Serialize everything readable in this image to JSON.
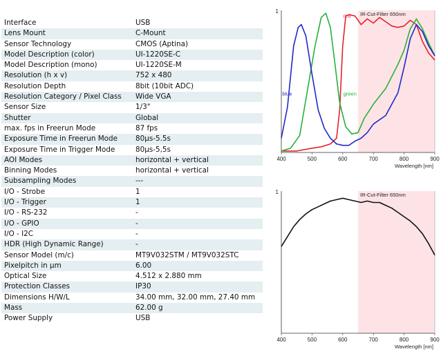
{
  "spec_table": {
    "rows": [
      {
        "key": "Interface",
        "value": "USB"
      },
      {
        "key": "Lens Mount",
        "value": "C-Mount"
      },
      {
        "key": "Sensor Technology",
        "value": "CMOS (Aptina)"
      },
      {
        "key": "Model Description (color)",
        "value": "UI-1220SE-C"
      },
      {
        "key": "Model Description (mono)",
        "value": "UI-1220SE-M"
      },
      {
        "key": "Resolution (h x v)",
        "value": "752 x 480"
      },
      {
        "key": "Resolution Depth",
        "value": "8bit (10bit ADC)"
      },
      {
        "key": "Resolution Category / Pixel Class",
        "value": "Wide VGA"
      },
      {
        "key": "Sensor Size",
        "value": "1/3\""
      },
      {
        "key": "Shutter",
        "value": "Global"
      },
      {
        "key": "max. fps in Freerun Mode",
        "value": "87 fps"
      },
      {
        "key": "Exposure Time in Freerun Mode",
        "value": "80µs-5.5s"
      },
      {
        "key": "Exposure Time in Trigger Mode",
        "value": "80µs-5,5s"
      },
      {
        "key": "AOI Modes",
        "value": "horizontal + vertical"
      },
      {
        "key": "Binning Modes",
        "value": "horizontal + vertical"
      },
      {
        "key": "Subsampling Modes",
        "value": "---"
      },
      {
        "key": "I/O - Strobe",
        "value": "1"
      },
      {
        "key": "I/O - Trigger",
        "value": "1"
      },
      {
        "key": "I/O - RS-232",
        "value": "-"
      },
      {
        "key": "I/O - GPIO",
        "value": "-"
      },
      {
        "key": "I/O - I2C",
        "value": "-"
      },
      {
        "key": "HDR (High Dynamic Range)",
        "value": "-"
      },
      {
        "key": "Sensor Model (m/c)",
        "value": "MT9V032STM / MT9V032STC"
      },
      {
        "key": "Pixelpitch in µm",
        "value": "6.00"
      },
      {
        "key": "Optical Size",
        "value": "4.512 x 2.880 mm"
      },
      {
        "key": "Protection Classes",
        "value": "IP30"
      },
      {
        "key": "Dimensions H/W/L",
        "value": "34.00 mm, 32.00 mm, 27.40 mm"
      },
      {
        "key": "Mass",
        "value": "62.00 g"
      },
      {
        "key": "Power Supply",
        "value": "USB"
      }
    ]
  },
  "colors": {
    "red": "#e8202a",
    "green": "#22b23a",
    "blue": "#2028c8",
    "mono": "#111111",
    "filter_band": "#fde3e6",
    "row_alt": "#e5eef1"
  },
  "chart_data": [
    {
      "type": "line",
      "title": "",
      "xlabel": "Wavelength [nm]",
      "ylabel": "",
      "xlim": [
        400,
        900
      ],
      "ylim": [
        0,
        1
      ],
      "x_ticks": [
        "400",
        "500",
        "600",
        "700",
        "800",
        "900"
      ],
      "y_tick_label": "1",
      "grid": false,
      "filter_band": {
        "from": 650,
        "to": 900,
        "label": "IR-Cut-Filter 650nm"
      },
      "series": [
        {
          "name": "red",
          "color": "red",
          "x": [
            400,
            450,
            500,
            530,
            560,
            580,
            590,
            600,
            610,
            620,
            640,
            660,
            680,
            700,
            720,
            740,
            760,
            780,
            800,
            820,
            840,
            860,
            880,
            900
          ],
          "y": [
            0.01,
            0.01,
            0.03,
            0.04,
            0.06,
            0.1,
            0.3,
            0.75,
            0.96,
            0.97,
            0.96,
            0.9,
            0.94,
            0.91,
            0.95,
            0.92,
            0.89,
            0.88,
            0.89,
            0.93,
            0.9,
            0.78,
            0.7,
            0.65
          ]
        },
        {
          "name": "green",
          "color": "green",
          "x": [
            400,
            430,
            460,
            490,
            510,
            530,
            545,
            560,
            575,
            590,
            610,
            630,
            650,
            670,
            700,
            740,
            780,
            800,
            820,
            840,
            860,
            880,
            900
          ],
          "y": [
            0.01,
            0.03,
            0.12,
            0.5,
            0.75,
            0.95,
            0.98,
            0.88,
            0.62,
            0.35,
            0.18,
            0.13,
            0.14,
            0.24,
            0.34,
            0.45,
            0.62,
            0.72,
            0.87,
            0.94,
            0.87,
            0.77,
            0.68
          ]
        },
        {
          "name": "blue",
          "color": "blue",
          "x": [
            400,
            420,
            440,
            455,
            465,
            480,
            500,
            520,
            540,
            560,
            580,
            600,
            620,
            640,
            660,
            680,
            700,
            740,
            780,
            800,
            820,
            840,
            860,
            880,
            900
          ],
          "y": [
            0.1,
            0.32,
            0.75,
            0.88,
            0.9,
            0.82,
            0.55,
            0.3,
            0.17,
            0.1,
            0.06,
            0.05,
            0.05,
            0.08,
            0.1,
            0.14,
            0.2,
            0.26,
            0.42,
            0.6,
            0.8,
            0.9,
            0.85,
            0.75,
            0.68
          ]
        }
      ]
    },
    {
      "type": "line",
      "title": "",
      "xlabel": "Wavelength [nm]",
      "ylabel": "",
      "xlim": [
        400,
        900
      ],
      "ylim": [
        0,
        1
      ],
      "x_ticks": [
        "400",
        "500",
        "600",
        "700",
        "800",
        "900"
      ],
      "y_tick_label": "1",
      "grid": false,
      "filter_band": {
        "from": 650,
        "to": 900,
        "label": "IR-Cut-Filter 650nm"
      },
      "series": [
        {
          "name": "",
          "color": "mono",
          "x": [
            400,
            420,
            440,
            460,
            480,
            500,
            520,
            540,
            560,
            580,
            600,
            620,
            640,
            660,
            680,
            700,
            720,
            740,
            760,
            780,
            800,
            820,
            840,
            860,
            880,
            900
          ],
          "y": [
            0.61,
            0.68,
            0.75,
            0.8,
            0.84,
            0.87,
            0.89,
            0.91,
            0.93,
            0.94,
            0.95,
            0.94,
            0.93,
            0.92,
            0.93,
            0.92,
            0.92,
            0.9,
            0.88,
            0.85,
            0.82,
            0.79,
            0.75,
            0.7,
            0.63,
            0.55
          ]
        }
      ]
    }
  ]
}
